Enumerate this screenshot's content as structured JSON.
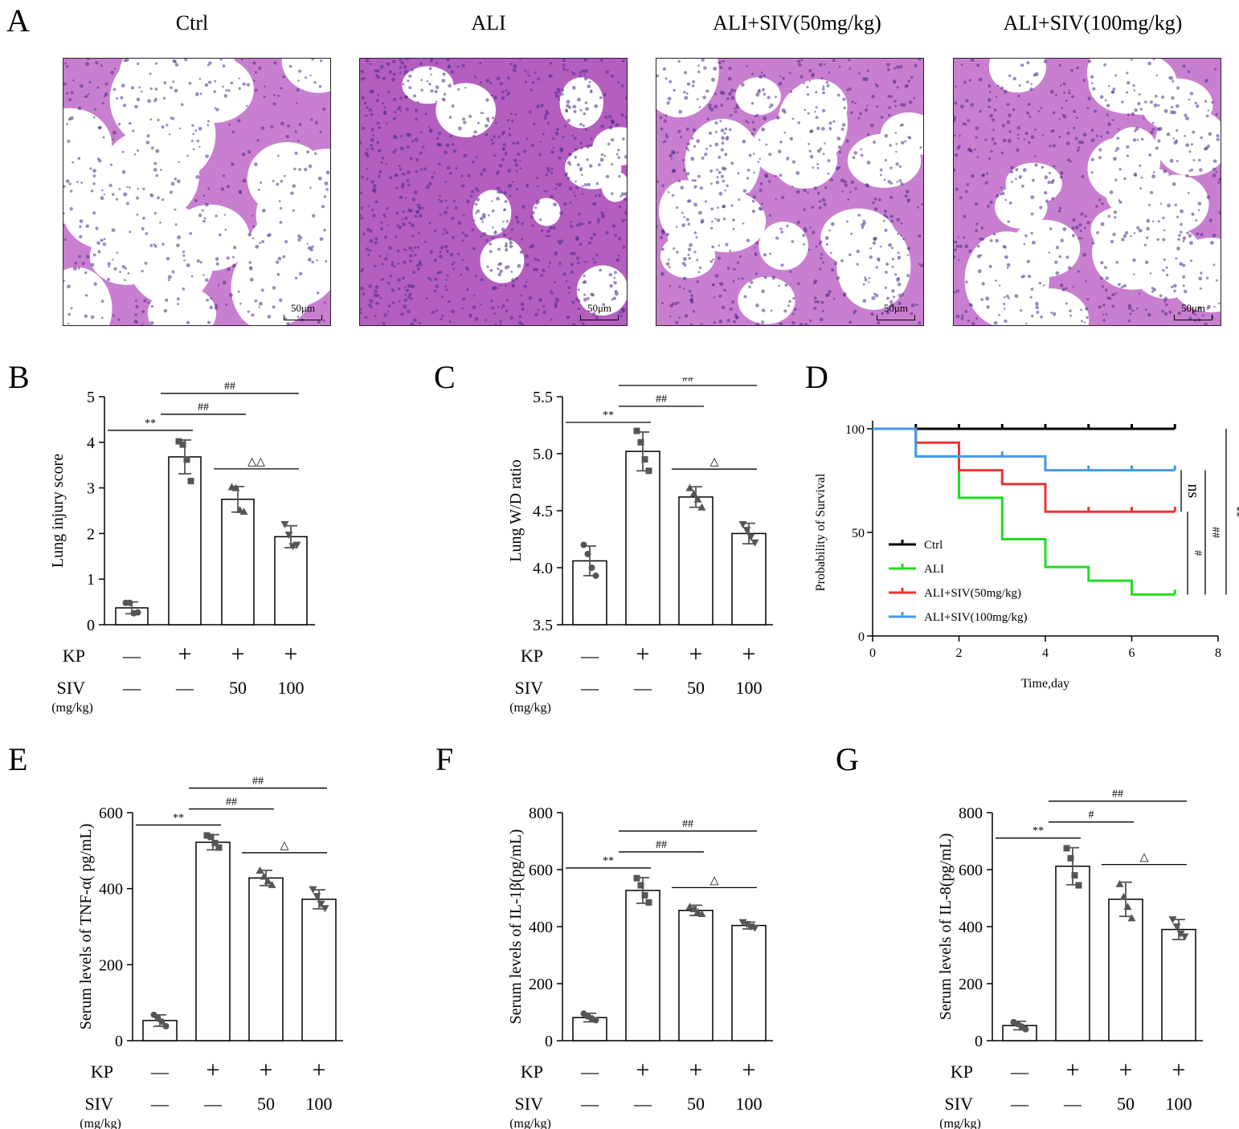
{
  "panel_letters": {
    "A": "A",
    "B": "B",
    "C": "C",
    "D": "D",
    "E": "E",
    "F": "F",
    "G": "G"
  },
  "histology": {
    "titles": [
      "Ctrl",
      "ALI",
      "ALI+SIV(50mg/kg)",
      "ALI+SIV(100mg/kg)"
    ],
    "scale_label": "50μm",
    "colors": {
      "tissue": "#c97fd0",
      "tissue_dense": "#b45ec0",
      "nuclei": "#4a2a8a",
      "space": "#ffffff"
    }
  },
  "group_rows": {
    "kp_label": "KP",
    "siv_label": "SIV",
    "siv_unit": "(mg/kg)",
    "kp_values": [
      "—",
      "+",
      "+",
      "+"
    ],
    "siv_values": [
      "—",
      "—",
      "50",
      "100"
    ]
  },
  "chart_data": [
    {
      "id": "B",
      "type": "bar",
      "ylabel": "Lung injury score",
      "ylim": [
        0,
        5
      ],
      "yticks": [
        "0",
        "1",
        "2",
        "3",
        "4",
        "5"
      ],
      "values": [
        0.37,
        3.68,
        2.75,
        1.93
      ],
      "errors": [
        0.13,
        0.37,
        0.28,
        0.24
      ],
      "points": [
        [
          0.48,
          0.48,
          0.25,
          0.27
        ],
        [
          4.02,
          3.95,
          3.62,
          3.15
        ],
        [
          3.02,
          3.0,
          2.52,
          2.48
        ],
        [
          2.2,
          1.97,
          1.72,
          1.75
        ]
      ],
      "significance": [
        {
          "from": 0,
          "to": 1,
          "label": "**"
        },
        {
          "from": 1,
          "to": 2,
          "label": "##"
        },
        {
          "from": 1,
          "to": 3,
          "label": "##"
        },
        {
          "from": 2,
          "to": 3,
          "label": "△△"
        }
      ]
    },
    {
      "id": "C",
      "type": "bar",
      "ylabel": "Lung W/D ratio",
      "ylim": [
        3.5,
        5.5
      ],
      "yticks": [
        "3.5",
        "4.0",
        "4.5",
        "5.0",
        "5.5"
      ],
      "values": [
        4.06,
        5.02,
        4.62,
        4.3
      ],
      "errors": [
        0.13,
        0.17,
        0.09,
        0.09
      ],
      "points": [
        [
          4.2,
          4.12,
          4.0,
          3.93
        ],
        [
          5.2,
          5.1,
          4.95,
          4.85
        ],
        [
          4.7,
          4.65,
          4.6,
          4.53
        ],
        [
          4.38,
          4.33,
          4.27,
          4.22
        ]
      ],
      "significance": [
        {
          "from": 0,
          "to": 1,
          "label": "**"
        },
        {
          "from": 1,
          "to": 2,
          "label": "##"
        },
        {
          "from": 1,
          "to": 3,
          "label": "##"
        },
        {
          "from": 2,
          "to": 3,
          "label": "△"
        }
      ]
    },
    {
      "id": "D",
      "type": "line",
      "subtype": "survival-step",
      "xlabel": "Time,day",
      "ylabel": "Probability of Survival",
      "xlim": [
        0,
        8
      ],
      "ylim": [
        0,
        100
      ],
      "xticks": [
        "0",
        "2",
        "4",
        "6",
        "8"
      ],
      "yticks": [
        "0",
        "50",
        "100"
      ],
      "series": [
        {
          "name": "Ctrl",
          "color": "#000000",
          "steps": [
            [
              0,
              100
            ],
            [
              7,
              100
            ]
          ],
          "ticks": [
            1,
            2,
            3,
            4,
            5,
            6,
            7
          ]
        },
        {
          "name": "ALI",
          "color": "#22dd22",
          "steps": [
            [
              0,
              100
            ],
            [
              1,
              86.7
            ],
            [
              2,
              66.7
            ],
            [
              3,
              46.7
            ],
            [
              4,
              33.3
            ],
            [
              5,
              26.7
            ],
            [
              6,
              20
            ],
            [
              7,
              20
            ]
          ],
          "ticks": [
            7
          ]
        },
        {
          "name": "ALI+SIV(50mg/kg)",
          "color": "#ee3333",
          "steps": [
            [
              0,
              100
            ],
            [
              1,
              93.3
            ],
            [
              2,
              80
            ],
            [
              3,
              73.3
            ],
            [
              4,
              60
            ],
            [
              7,
              60
            ]
          ],
          "ticks": [
            3,
            5,
            6,
            7
          ]
        },
        {
          "name": "ALI+SIV(100mg/kg)",
          "color": "#4499ee",
          "steps": [
            [
              0,
              100
            ],
            [
              1,
              86.7
            ],
            [
              4,
              80
            ],
            [
              7,
              80
            ]
          ],
          "ticks": [
            3,
            5,
            6,
            7
          ]
        }
      ],
      "significance": [
        {
          "label": "ns"
        },
        {
          "label": "#"
        },
        {
          "label": "##"
        },
        {
          "label": "**"
        }
      ]
    },
    {
      "id": "E",
      "type": "bar",
      "ylabel": "Serum levels of TNF-α( pg/mL)",
      "ylim": [
        0,
        600
      ],
      "yticks": [
        "0",
        "200",
        "400",
        "600"
      ],
      "values": [
        53,
        522,
        428,
        372
      ],
      "errors": [
        15,
        20,
        20,
        25
      ],
      "points": [
        [
          68,
          58,
          50,
          38
        ],
        [
          540,
          536,
          520,
          508
        ],
        [
          448,
          432,
          420,
          410
        ],
        [
          398,
          380,
          360,
          348
        ]
      ],
      "significance": [
        {
          "from": 0,
          "to": 1,
          "label": "**"
        },
        {
          "from": 1,
          "to": 2,
          "label": "##"
        },
        {
          "from": 1,
          "to": 3,
          "label": "##"
        },
        {
          "from": 2,
          "to": 3,
          "label": "△"
        }
      ]
    },
    {
      "id": "F",
      "type": "bar",
      "ylabel": "Serum levels of IL-1β(pg/mL)",
      "ylim": [
        0,
        800
      ],
      "yticks": [
        "0",
        "200",
        "400",
        "600",
        "800"
      ],
      "values": [
        81,
        527,
        457,
        404
      ],
      "errors": [
        15,
        45,
        18,
        12
      ],
      "points": [
        [
          95,
          85,
          78,
          72
        ],
        [
          570,
          545,
          510,
          485
        ],
        [
          470,
          462,
          452,
          445
        ],
        [
          415,
          408,
          400,
          395
        ]
      ],
      "significance": [
        {
          "from": 0,
          "to": 1,
          "label": "**"
        },
        {
          "from": 1,
          "to": 2,
          "label": "##"
        },
        {
          "from": 1,
          "to": 3,
          "label": "##"
        },
        {
          "from": 2,
          "to": 3,
          "label": "△"
        }
      ]
    },
    {
      "id": "G",
      "type": "bar",
      "ylabel": "Serum levels of IL-8(pg/mL)",
      "ylim": [
        0,
        800
      ],
      "yticks": [
        "0",
        "200",
        "400",
        "600",
        "800"
      ],
      "values": [
        53,
        612,
        496,
        390
      ],
      "errors": [
        15,
        65,
        60,
        35
      ],
      "points": [
        [
          65,
          58,
          50,
          40
        ],
        [
          675,
          640,
          580,
          545
        ],
        [
          550,
          505,
          470,
          430
        ],
        [
          425,
          400,
          375,
          365
        ]
      ],
      "significance": [
        {
          "from": 0,
          "to": 1,
          "label": "**"
        },
        {
          "from": 1,
          "to": 2,
          "label": "#"
        },
        {
          "from": 1,
          "to": 3,
          "label": "##"
        },
        {
          "from": 2,
          "to": 3,
          "label": "△"
        }
      ]
    }
  ]
}
